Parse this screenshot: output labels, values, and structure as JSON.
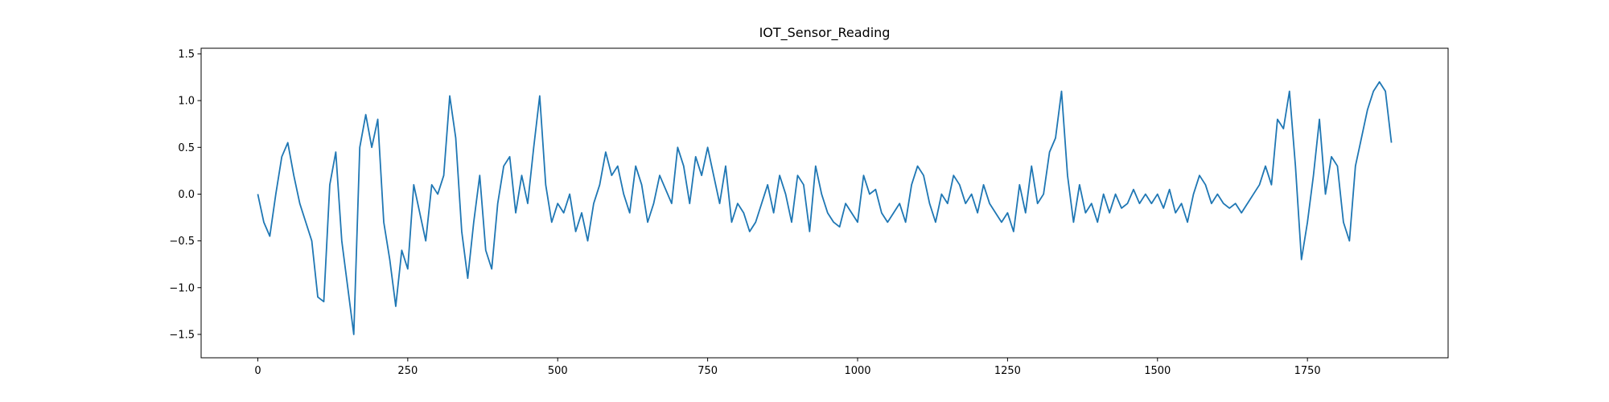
{
  "chart_data": {
    "type": "line",
    "title": "IOT_Sensor_Reading",
    "color": "#1f77b4",
    "x": [
      0,
      10,
      20,
      30,
      40,
      50,
      60,
      70,
      80,
      90,
      100,
      110,
      120,
      130,
      140,
      150,
      160,
      170,
      180,
      190,
      200,
      210,
      220,
      230,
      240,
      250,
      260,
      270,
      280,
      290,
      300,
      310,
      320,
      330,
      340,
      350,
      360,
      370,
      380,
      390,
      400,
      410,
      420,
      430,
      440,
      450,
      460,
      470,
      480,
      490,
      500,
      510,
      520,
      530,
      540,
      550,
      560,
      570,
      580,
      590,
      600,
      610,
      620,
      630,
      640,
      650,
      660,
      670,
      680,
      690,
      700,
      710,
      720,
      730,
      740,
      750,
      760,
      770,
      780,
      790,
      800,
      810,
      820,
      830,
      840,
      850,
      860,
      870,
      880,
      890,
      900,
      910,
      920,
      930,
      940,
      950,
      960,
      970,
      980,
      990,
      1000,
      1010,
      1020,
      1030,
      1040,
      1050,
      1060,
      1070,
      1080,
      1090,
      1100,
      1110,
      1120,
      1130,
      1140,
      1150,
      1160,
      1170,
      1180,
      1190,
      1200,
      1210,
      1220,
      1230,
      1240,
      1250,
      1260,
      1270,
      1280,
      1290,
      1300,
      1310,
      1320,
      1330,
      1340,
      1350,
      1360,
      1370,
      1380,
      1390,
      1400,
      1410,
      1420,
      1430,
      1440,
      1450,
      1460,
      1470,
      1480,
      1490,
      1500,
      1510,
      1520,
      1530,
      1540,
      1550,
      1560,
      1570,
      1580,
      1590,
      1600,
      1610,
      1620,
      1630,
      1640,
      1650,
      1660,
      1670,
      1680,
      1690,
      1700,
      1710,
      1720,
      1730,
      1740,
      1750,
      1760,
      1770,
      1780,
      1790,
      1800,
      1810,
      1820,
      1830,
      1840,
      1850,
      1860,
      1870,
      1880,
      1890
    ],
    "values": [
      0.0,
      -0.3,
      -0.45,
      0.0,
      0.4,
      0.55,
      0.2,
      -0.1,
      -0.3,
      -0.5,
      -1.1,
      -1.15,
      0.1,
      0.45,
      -0.5,
      -1.0,
      -1.5,
      0.5,
      0.85,
      0.5,
      0.8,
      -0.3,
      -0.7,
      -1.2,
      -0.6,
      -0.8,
      0.1,
      -0.2,
      -0.5,
      0.1,
      0.0,
      0.2,
      1.05,
      0.6,
      -0.4,
      -0.9,
      -0.3,
      0.2,
      -0.6,
      -0.8,
      -0.1,
      0.3,
      0.4,
      -0.2,
      0.2,
      -0.1,
      0.5,
      1.05,
      0.1,
      -0.3,
      -0.1,
      -0.2,
      0.0,
      -0.4,
      -0.2,
      -0.5,
      -0.1,
      0.1,
      0.45,
      0.2,
      0.3,
      0.0,
      -0.2,
      0.3,
      0.1,
      -0.3,
      -0.1,
      0.2,
      0.05,
      -0.1,
      0.5,
      0.3,
      -0.1,
      0.4,
      0.2,
      0.5,
      0.2,
      -0.1,
      0.3,
      -0.3,
      -0.1,
      -0.2,
      -0.4,
      -0.3,
      -0.1,
      0.1,
      -0.2,
      0.2,
      0.0,
      -0.3,
      0.2,
      0.1,
      -0.4,
      0.3,
      0.0,
      -0.2,
      -0.3,
      -0.35,
      -0.1,
      -0.2,
      -0.3,
      0.2,
      0.0,
      0.05,
      -0.2,
      -0.3,
      -0.2,
      -0.1,
      -0.3,
      0.1,
      0.3,
      0.2,
      -0.1,
      -0.3,
      0.0,
      -0.1,
      0.2,
      0.1,
      -0.1,
      0.0,
      -0.2,
      0.1,
      -0.1,
      -0.2,
      -0.3,
      -0.2,
      -0.4,
      0.1,
      -0.2,
      0.3,
      -0.1,
      0.0,
      0.45,
      0.6,
      1.1,
      0.2,
      -0.3,
      0.1,
      -0.2,
      -0.1,
      -0.3,
      0.0,
      -0.2,
      0.0,
      -0.15,
      -0.1,
      0.05,
      -0.1,
      0.0,
      -0.1,
      0.0,
      -0.15,
      0.05,
      -0.2,
      -0.1,
      -0.3,
      0.0,
      0.2,
      0.1,
      -0.1,
      0.0,
      -0.1,
      -0.15,
      -0.1,
      -0.2,
      -0.1,
      0.0,
      0.1,
      0.3,
      0.1,
      0.8,
      0.7,
      1.1,
      0.3,
      -0.7,
      -0.3,
      0.2,
      0.8,
      0.0,
      0.4,
      0.3,
      -0.3,
      -0.5,
      0.3,
      0.6,
      0.9,
      1.1,
      1.2,
      1.1,
      0.55
    ],
    "xlim": [
      -94.5,
      1984.5
    ],
    "ylim": [
      -1.75,
      1.56
    ],
    "xticks": [
      0,
      250,
      500,
      750,
      1000,
      1250,
      1500,
      1750
    ],
    "yticks": [
      {
        "value": -1.5,
        "label": "−1.5"
      },
      {
        "value": -1,
        "label": "−1.0"
      },
      {
        "value": -0.5,
        "label": "−0.5"
      },
      {
        "value": 0,
        "label": "0.0"
      },
      0.5,
      {
        "value": 1,
        "label": "1.0"
      },
      1.5
    ]
  }
}
